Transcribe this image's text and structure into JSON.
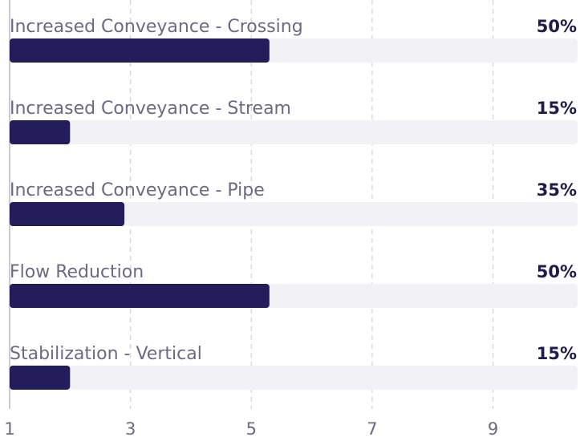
{
  "chart_data": {
    "type": "bar",
    "orientation": "horizontal",
    "categories": [
      "Increased Conveyance - Crossing",
      "Increased Conveyance - Stream",
      "Increased Conveyance - Pipe",
      "Flow Reduction",
      "Stabilization - Vertical"
    ],
    "values": [
      5.3,
      2.0,
      2.9,
      5.3,
      2.0
    ],
    "percent_labels": [
      "50%",
      "15%",
      "35%",
      "50%",
      "15%"
    ],
    "xlim": [
      1,
      10.4
    ],
    "xticks": [
      1,
      3,
      5,
      7,
      9
    ],
    "grid": true,
    "legend": "none",
    "colors": {
      "bar": "#231d5c",
      "track": "#f2f1f6",
      "label": "#6b6984",
      "percent": "#1f1b4d",
      "grid": "#d6d5dd"
    }
  }
}
